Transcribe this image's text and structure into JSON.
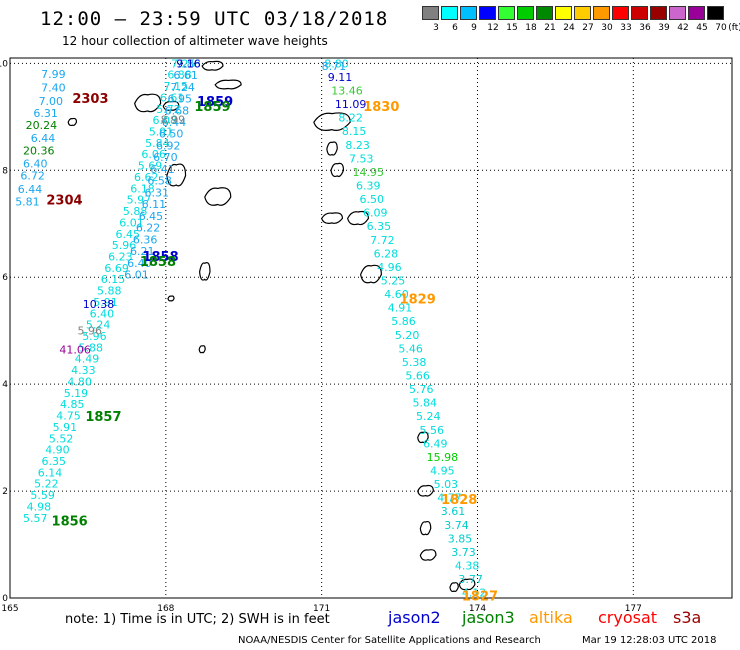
{
  "title": "12:00 – 23:59 UTC 03/18/2018",
  "subtitle": "12 hour collection of altimeter wave heights",
  "legend": {
    "unit": "(ft)",
    "bins": [
      {
        "label": "3",
        "color": "#808080"
      },
      {
        "label": "6",
        "color": "#00ffff"
      },
      {
        "label": "9",
        "color": "#00bfff"
      },
      {
        "label": "12",
        "color": "#0000ff"
      },
      {
        "label": "15",
        "color": "#33ff33"
      },
      {
        "label": "18",
        "color": "#00cc00"
      },
      {
        "label": "21",
        "color": "#008800"
      },
      {
        "label": "24",
        "color": "#ffff00"
      },
      {
        "label": "27",
        "color": "#ffcc00"
      },
      {
        "label": "30",
        "color": "#ff9900"
      },
      {
        "label": "33",
        "color": "#ff0000"
      },
      {
        "label": "36",
        "color": "#cc0000"
      },
      {
        "label": "39",
        "color": "#990000"
      },
      {
        "label": "42",
        "color": "#cc66cc"
      },
      {
        "label": "45",
        "color": "#990099"
      },
      {
        "label": "70",
        "color": "#000000"
      }
    ]
  },
  "axes": {
    "x_ticks": [
      {
        "v": 165,
        "label": "165"
      },
      {
        "v": 168,
        "label": "168"
      },
      {
        "v": 171,
        "label": "171"
      },
      {
        "v": 174,
        "label": "174"
      },
      {
        "v": 177,
        "label": "177"
      }
    ],
    "y_ticks": [
      {
        "v": 0,
        "label": "0"
      },
      {
        "v": 2,
        "label": "2"
      },
      {
        "v": 4,
        "label": "4"
      },
      {
        "v": 6,
        "label": "6"
      },
      {
        "v": 8,
        "label": "8"
      },
      {
        "v": 10,
        "label": "10"
      }
    ],
    "x_range": [
      165,
      178.9
    ],
    "y_range": [
      0,
      10.1
    ]
  },
  "time_labels": [
    {
      "text": "2303",
      "lon": 166.2,
      "lat": 9.35,
      "color": "#8b0000"
    },
    {
      "text": "2304",
      "lon": 165.7,
      "lat": 7.45,
      "color": "#8b0000"
    },
    {
      "text": "1859",
      "lon": 168.6,
      "lat": 9.3,
      "color": "#0000cc"
    },
    {
      "text": "1859",
      "lon": 168.55,
      "lat": 9.2,
      "color": "#008000"
    },
    {
      "text": "1858",
      "lon": 167.55,
      "lat": 6.4,
      "color": "#0000cc"
    },
    {
      "text": "1858",
      "lon": 167.5,
      "lat": 6.3,
      "color": "#008000"
    },
    {
      "text": "1857",
      "lon": 166.45,
      "lat": 3.4,
      "color": "#008000"
    },
    {
      "text": "1856",
      "lon": 165.8,
      "lat": 1.45,
      "color": "#008000"
    },
    {
      "text": "1830",
      "lon": 171.8,
      "lat": 9.2,
      "color": "#ff9900"
    },
    {
      "text": "1829",
      "lon": 172.5,
      "lat": 5.6,
      "color": "#ff9900"
    },
    {
      "text": "1828",
      "lon": 173.3,
      "lat": 1.85,
      "color": "#ff9900"
    },
    {
      "text": "1827",
      "lon": 173.7,
      "lat": 0.05,
      "color": "#ff9900"
    }
  ],
  "tracks": [
    {
      "id": "track-a",
      "color": "#00dddd",
      "start": [
        165.25,
        1.5
      ],
      "end": [
        168.1,
        10.0
      ],
      "values": [
        "5.57",
        "4.98",
        "5.59",
        "5.22",
        "6.14",
        "6.35",
        "4.90",
        "5.52",
        "5.91",
        "4.75",
        "4.85",
        "5.19",
        "4.80",
        "4.33",
        "4.49",
        "5.88",
        "5.96",
        "5.24",
        "6.40",
        "5.91",
        "5.88",
        "6.15",
        "6.69",
        "6.23",
        "5.96",
        "6.45",
        "6.01",
        "5.88",
        "5.97",
        "6.18",
        "6.62",
        "5.69",
        "6.06",
        "5.84",
        "5.91",
        "6.08",
        "5.72",
        "6.61",
        "7.15",
        "6.88",
        "7.25"
      ]
    },
    {
      "id": "track-b",
      "color": "#1aa8ee",
      "start": [
        167.2,
        6.05
      ],
      "end": [
        168.2,
        10.0
      ],
      "values": [
        "6.01",
        "6.40",
        "6.21",
        "6.36",
        "6.22",
        "6.45",
        "6.11",
        "6.31",
        "6.58",
        "6.41",
        "6.70",
        "6.92",
        "6.50",
        "6.44",
        "6.68",
        "6.95",
        "7.24",
        "6.61",
        "7.88"
      ]
    },
    {
      "id": "track-c",
      "color": "#00dddd",
      "start": [
        171.05,
        10.0
      ],
      "end": [
        173.7,
        0.1
      ],
      "values": [
        "8.80",
        "9.11",
        "13.46",
        "11.09",
        "8.22",
        "8.15",
        "8.23",
        "7.53",
        "14.95",
        "6.39",
        "6.50",
        "6.09",
        "6.35",
        "7.72",
        "6.28",
        "4.96",
        "5.25",
        "4.60",
        "4.91",
        "5.86",
        "5.20",
        "5.46",
        "5.38",
        "5.66",
        "5.76",
        "5.84",
        "5.24",
        "5.56",
        "6.49",
        "15.98",
        "4.95",
        "5.03",
        "4.77",
        "3.61",
        "3.74",
        "3.85",
        "3.73",
        "4.38",
        "3.77",
        "4.12"
      ]
    }
  ],
  "value_labels": [
    {
      "text": "7.99",
      "lon": 165.6,
      "lat": 9.8,
      "color": "#1aa8ee"
    },
    {
      "text": "7.40",
      "lon": 165.6,
      "lat": 9.55,
      "color": "#1aa8ee"
    },
    {
      "text": "7.00",
      "lon": 165.55,
      "lat": 9.3,
      "color": "#1aa8ee"
    },
    {
      "text": "6.31",
      "lon": 165.45,
      "lat": 9.07,
      "color": "#1aa8ee"
    },
    {
      "text": "20.24",
      "lon": 165.3,
      "lat": 8.85,
      "color": "#008000"
    },
    {
      "text": "6.44",
      "lon": 165.4,
      "lat": 8.6,
      "color": "#1aa8ee"
    },
    {
      "text": "20.36",
      "lon": 165.25,
      "lat": 8.37,
      "color": "#008000"
    },
    {
      "text": "6.40",
      "lon": 165.25,
      "lat": 8.13,
      "color": "#1aa8ee"
    },
    {
      "text": "6.72",
      "lon": 165.2,
      "lat": 7.9,
      "color": "#1aa8ee"
    },
    {
      "text": "6.44",
      "lon": 165.15,
      "lat": 7.65,
      "color": "#1aa8ee"
    },
    {
      "text": "5.81",
      "lon": 165.1,
      "lat": 7.42,
      "color": "#1aa8ee"
    },
    {
      "text": "9.16",
      "lon": 168.2,
      "lat": 10.0,
      "color": "#0000cc"
    },
    {
      "text": "8.71",
      "lon": 171.0,
      "lat": 9.95,
      "color": "#1aa8ee"
    },
    {
      "text": "10.38",
      "lon": 166.4,
      "lat": 5.5,
      "color": "#0000cc"
    },
    {
      "text": "41.06",
      "lon": 165.95,
      "lat": 4.65,
      "color": "#990099"
    },
    {
      "text": "8.99",
      "lon": 167.9,
      "lat": 8.95,
      "color": "#808080"
    },
    {
      "text": "5.96",
      "lon": 166.3,
      "lat": 5.0,
      "color": "#808080"
    }
  ],
  "islands": [
    {
      "lon": 166.2,
      "lat": 8.9,
      "w": 0.08,
      "h": 0.08
    },
    {
      "lon": 167.65,
      "lat": 9.25,
      "w": 0.25,
      "h": 0.2
    },
    {
      "lon": 168.1,
      "lat": 9.2,
      "w": 0.15,
      "h": 0.1
    },
    {
      "lon": 168.9,
      "lat": 9.95,
      "w": 0.2,
      "h": 0.1
    },
    {
      "lon": 169.2,
      "lat": 9.6,
      "w": 0.25,
      "h": 0.1
    },
    {
      "lon": 171.2,
      "lat": 8.9,
      "w": 0.35,
      "h": 0.2
    },
    {
      "lon": 171.2,
      "lat": 8.4,
      "w": 0.1,
      "h": 0.15
    },
    {
      "lon": 171.3,
      "lat": 8.0,
      "w": 0.12,
      "h": 0.15
    },
    {
      "lon": 168.2,
      "lat": 7.9,
      "w": 0.18,
      "h": 0.25
    },
    {
      "lon": 169.0,
      "lat": 7.5,
      "w": 0.25,
      "h": 0.2
    },
    {
      "lon": 171.2,
      "lat": 7.1,
      "w": 0.2,
      "h": 0.12
    },
    {
      "lon": 171.7,
      "lat": 7.1,
      "w": 0.2,
      "h": 0.15
    },
    {
      "lon": 168.75,
      "lat": 6.1,
      "w": 0.1,
      "h": 0.2
    },
    {
      "lon": 171.95,
      "lat": 6.05,
      "w": 0.2,
      "h": 0.2
    },
    {
      "lon": 168.1,
      "lat": 5.6,
      "w": 0.05,
      "h": 0.05
    },
    {
      "lon": 168.7,
      "lat": 4.65,
      "w": 0.05,
      "h": 0.08
    },
    {
      "lon": 172.95,
      "lat": 3.0,
      "w": 0.1,
      "h": 0.12
    },
    {
      "lon": 173.0,
      "lat": 2.0,
      "w": 0.15,
      "h": 0.12
    },
    {
      "lon": 173.0,
      "lat": 1.3,
      "w": 0.1,
      "h": 0.15
    },
    {
      "lon": 173.05,
      "lat": 0.8,
      "w": 0.15,
      "h": 0.12
    },
    {
      "lon": 173.8,
      "lat": 0.25,
      "w": 0.15,
      "h": 0.12
    },
    {
      "lon": 173.55,
      "lat": 0.2,
      "w": 0.08,
      "h": 0.1
    }
  ],
  "footer": {
    "note": "note: 1) Time is in UTC; 2) SWH is in feet",
    "satellites": [
      {
        "name": "jason2",
        "color": "#0000cc",
        "left": 388
      },
      {
        "name": "jason3",
        "color": "#008000",
        "left": 462
      },
      {
        "name": "altika",
        "color": "#ff9900",
        "left": 529
      },
      {
        "name": "cryosat",
        "color": "#ff0000",
        "left": 598
      },
      {
        "name": "s3a",
        "color": "#990000",
        "left": 673
      }
    ],
    "credit": "NOAA/NESDIS Center for Satellite Applications and Research",
    "timestamp": "Mar 19 12:28:03 UTC 2018"
  }
}
